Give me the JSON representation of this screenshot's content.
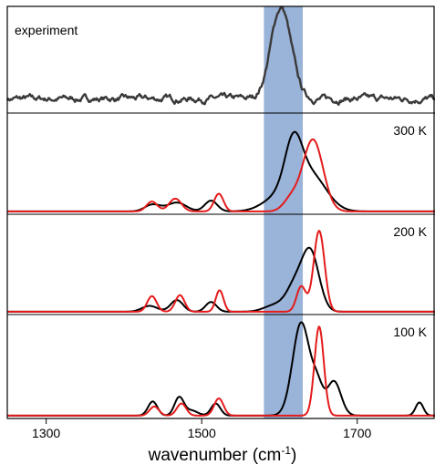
{
  "chart_data": {
    "type": "line",
    "xlabel_main": "wavenumber (cm",
    "xlabel_sup": "-1",
    "xlabel_close": ")",
    "xlim": [
      1250,
      1800
    ],
    "x_ticks": [
      1300,
      1500,
      1700
    ],
    "x_tick_labels": [
      "1300",
      "1500",
      "1700"
    ],
    "highlight_band": {
      "x_start": 1580,
      "x_end": 1630,
      "color": "#9ab3d8"
    },
    "panels": [
      {
        "label": "experiment",
        "series": [
          {
            "color": "#3a3a3a",
            "style": "noisy",
            "baseline": 0.12,
            "noise": 0.035,
            "peaks": [
              {
                "center": 1602,
                "height": 0.88,
                "width": 13
              }
            ]
          }
        ]
      },
      {
        "label": "300 K",
        "series": [
          {
            "color": "#000000",
            "baseline": 0.01,
            "peaks": [
              {
                "center": 1437,
                "height": 0.07,
                "width": 10
              },
              {
                "center": 1468,
                "height": 0.09,
                "width": 12
              },
              {
                "center": 1512,
                "height": 0.11,
                "width": 8
              },
              {
                "center": 1600,
                "height": 0.15,
                "width": 20
              },
              {
                "center": 1618,
                "height": 0.5,
                "width": 11
              },
              {
                "center": 1640,
                "height": 0.37,
                "width": 20
              }
            ]
          },
          {
            "color": "#e41b1b",
            "baseline": 0.01,
            "peaks": [
              {
                "center": 1436,
                "height": 0.1,
                "width": 7
              },
              {
                "center": 1466,
                "height": 0.13,
                "width": 8
              },
              {
                "center": 1522,
                "height": 0.18,
                "width": 6
              },
              {
                "center": 1615,
                "height": 0.12,
                "width": 10
              },
              {
                "center": 1643,
                "height": 0.73,
                "width": 13
              }
            ]
          }
        ]
      },
      {
        "label": "200 K",
        "series": [
          {
            "color": "#000000",
            "baseline": 0.01,
            "peaks": [
              {
                "center": 1433,
                "height": 0.06,
                "width": 10
              },
              {
                "center": 1468,
                "height": 0.12,
                "width": 8
              },
              {
                "center": 1512,
                "height": 0.1,
                "width": 7
              },
              {
                "center": 1595,
                "height": 0.07,
                "width": 14
              },
              {
                "center": 1620,
                "height": 0.25,
                "width": 11
              },
              {
                "center": 1640,
                "height": 0.6,
                "width": 11
              }
            ]
          },
          {
            "color": "#e41b1b",
            "baseline": 0.01,
            "peaks": [
              {
                "center": 1436,
                "height": 0.16,
                "width": 6
              },
              {
                "center": 1472,
                "height": 0.17,
                "width": 6
              },
              {
                "center": 1523,
                "height": 0.22,
                "width": 5
              },
              {
                "center": 1628,
                "height": 0.26,
                "width": 6
              },
              {
                "center": 1651,
                "height": 0.83,
                "width": 7
              }
            ]
          }
        ]
      },
      {
        "label": "100 K",
        "series": [
          {
            "color": "#000000",
            "baseline": 0.01,
            "peaks": [
              {
                "center": 1437,
                "height": 0.14,
                "width": 6
              },
              {
                "center": 1471,
                "height": 0.18,
                "width": 6
              },
              {
                "center": 1487,
                "height": 0.05,
                "width": 8
              },
              {
                "center": 1518,
                "height": 0.12,
                "width": 6
              },
              {
                "center": 1628,
                "height": 0.92,
                "width": 11
              },
              {
                "center": 1649,
                "height": 0.25,
                "width": 7
              },
              {
                "center": 1670,
                "height": 0.34,
                "width": 9
              },
              {
                "center": 1780,
                "height": 0.13,
                "width": 5
              }
            ]
          },
          {
            "color": "#e41b1b",
            "baseline": 0.01,
            "peaks": [
              {
                "center": 1439,
                "height": 0.09,
                "width": 6
              },
              {
                "center": 1474,
                "height": 0.12,
                "width": 6
              },
              {
                "center": 1522,
                "height": 0.17,
                "width": 6
              },
              {
                "center": 1651,
                "height": 0.88,
                "width": 6
              }
            ]
          }
        ]
      }
    ]
  }
}
